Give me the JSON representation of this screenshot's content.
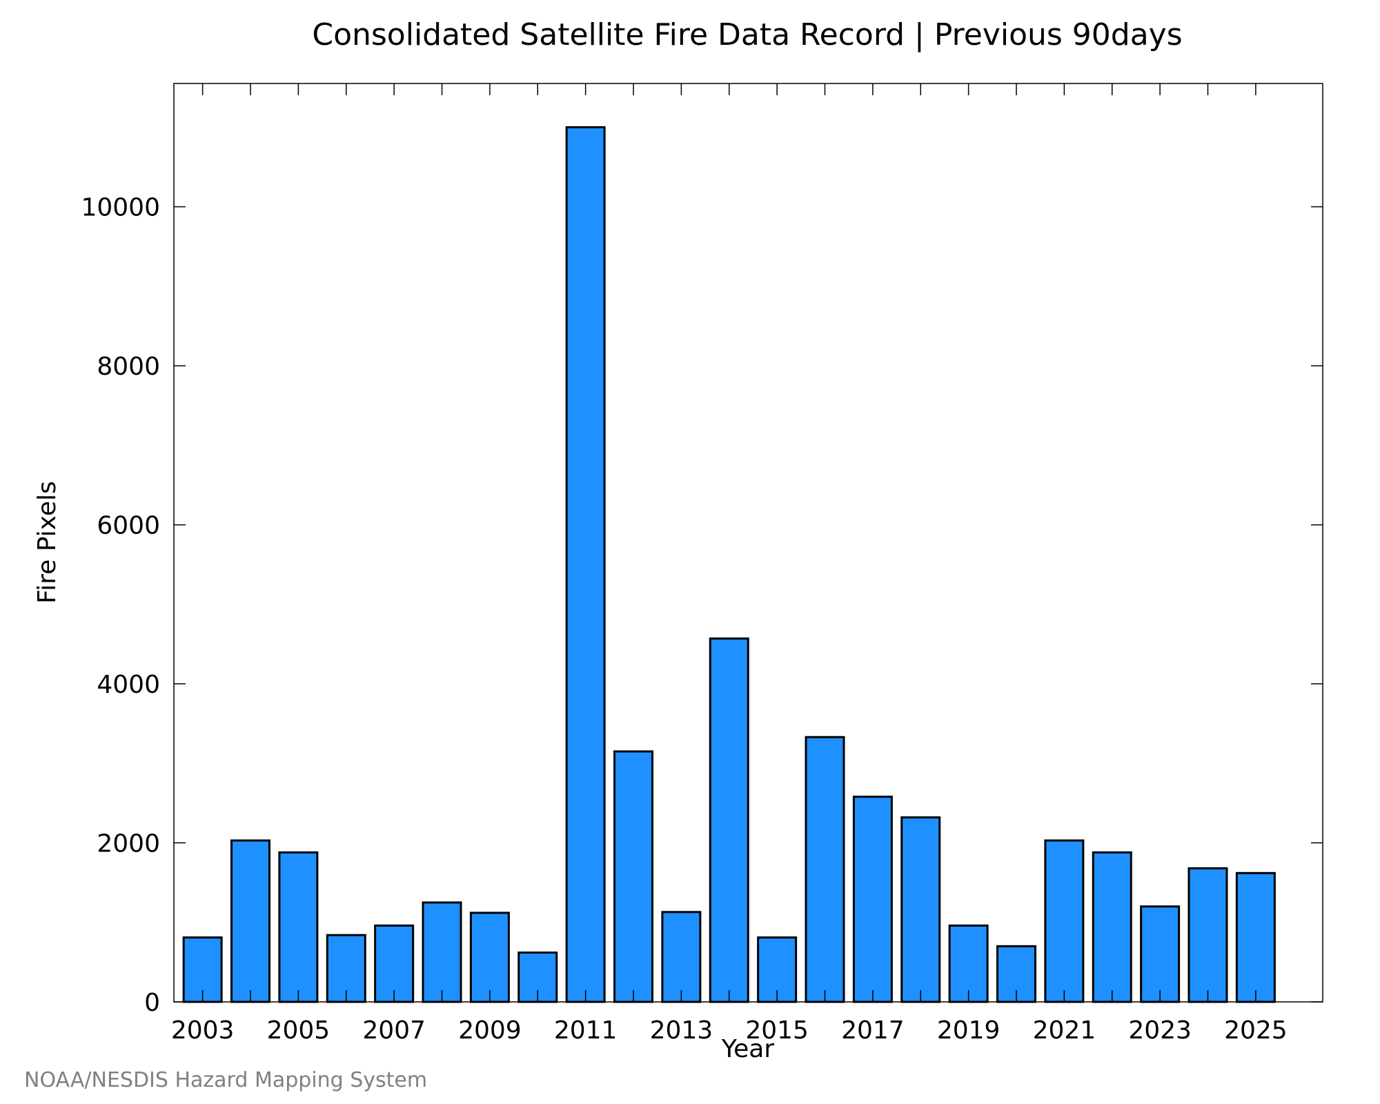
{
  "chart_data": {
    "type": "bar",
    "title": "Consolidated Satellite Fire Data Record | Previous 90days",
    "xlabel": "Year",
    "ylabel": "Fire Pixels",
    "categories": [
      2003,
      2004,
      2005,
      2006,
      2007,
      2008,
      2009,
      2010,
      2011,
      2012,
      2013,
      2014,
      2015,
      2016,
      2017,
      2018,
      2019,
      2020,
      2021,
      2022,
      2023,
      2024,
      2025
    ],
    "values": [
      810,
      2030,
      1880,
      840,
      960,
      1250,
      1120,
      620,
      11000,
      3150,
      1130,
      4570,
      810,
      3330,
      2580,
      2320,
      960,
      700,
      2030,
      1880,
      1200,
      1680,
      1620
    ],
    "x_tick_labels": [
      "2003",
      "2005",
      "2007",
      "2009",
      "2011",
      "2013",
      "2015",
      "2017",
      "2019",
      "2021",
      "2023",
      "2025"
    ],
    "y_ticks": [
      0,
      2000,
      4000,
      6000,
      8000,
      10000
    ],
    "y_tick_labels": [
      "0",
      "2000",
      "4000",
      "6000",
      "8000",
      "10000"
    ],
    "ylim": [
      0,
      11550
    ],
    "xlim": [
      2002.4,
      2026.4
    ],
    "grid": false,
    "legend": "none",
    "bar_color": "#1e90ff",
    "bar_edge_color": "#000000"
  },
  "credit": "NOAA/NESDIS Hazard Mapping System"
}
